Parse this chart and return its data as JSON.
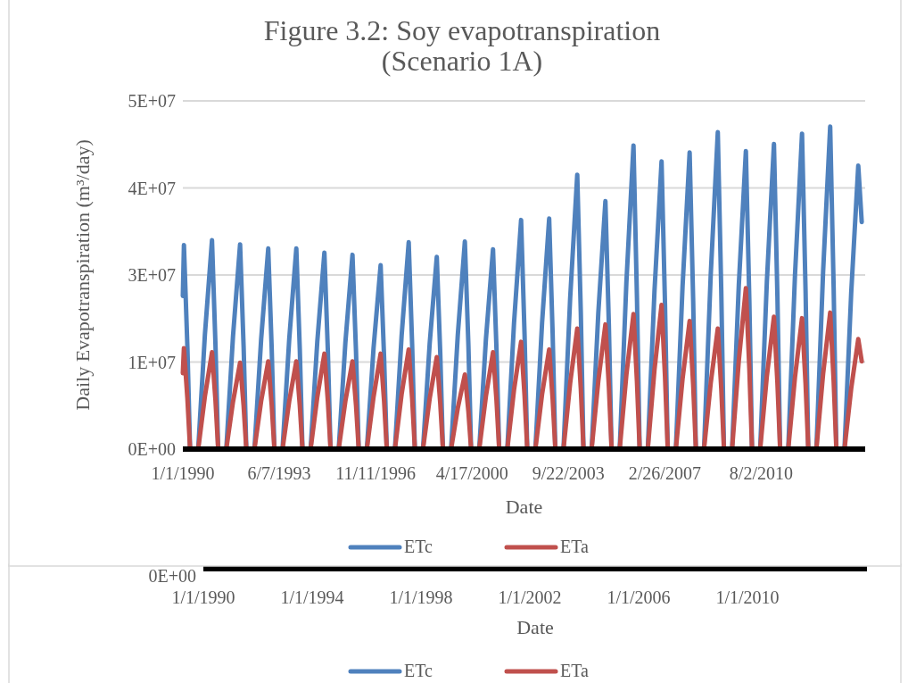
{
  "chart_data": [
    {
      "type": "line",
      "title": "Figure 3.2: Soy evapotranspiration\n(Scenario 1A)",
      "xlabel": "Date",
      "ylabel": "Daily Evapotranspiration (m³/day)",
      "legend": "bottom",
      "grid": "y",
      "line_style": "solid",
      "marker": "none",
      "xlim": [
        "1990-01-01",
        "2014-04-15"
      ],
      "ylim": [
        0,
        50000000.0
      ],
      "yticks": [
        {
          "value": 0,
          "label": "0E+00"
        },
        {
          "value": 12500000.0,
          "label": "1E+07"
        },
        {
          "value": 25000000.0,
          "label": "3E+07"
        },
        {
          "value": 37500000.0,
          "label": "4E+07"
        },
        {
          "value": 50000000.0,
          "label": "5E+07"
        }
      ],
      "xticks": [
        {
          "value": "1990-01-01",
          "label": "1/1/1990"
        },
        {
          "value": "1993-06-07",
          "label": "6/7/1993"
        },
        {
          "value": "1996-11-11",
          "label": "11/11/1996"
        },
        {
          "value": "2000-04-17",
          "label": "4/17/2000"
        },
        {
          "value": "2003-09-22",
          "label": "9/22/2003"
        },
        {
          "value": "2007-02-26",
          "label": "2/26/2007"
        },
        {
          "value": "2010-08-02",
          "label": "8/2/2010"
        }
      ],
      "x": [
        "1990-01-01",
        "1990-01-15",
        "1990-03-01",
        "1990-04-05",
        "1990-07-20",
        "1990-10-15",
        "1991-01-15",
        "1991-03-01",
        "1991-04-05",
        "1991-07-20",
        "1991-10-15",
        "1992-01-15",
        "1992-03-01",
        "1992-04-05",
        "1992-07-20",
        "1992-10-15",
        "1993-01-15",
        "1993-03-01",
        "1993-04-05",
        "1993-07-20",
        "1993-10-15",
        "1994-01-15",
        "1994-03-01",
        "1994-04-05",
        "1994-07-20",
        "1994-10-15",
        "1995-01-15",
        "1995-03-01",
        "1995-04-05",
        "1995-07-20",
        "1995-10-15",
        "1996-01-15",
        "1996-03-01",
        "1996-04-05",
        "1996-07-20",
        "1996-10-15",
        "1997-01-15",
        "1997-03-01",
        "1997-04-05",
        "1997-07-20",
        "1997-10-15",
        "1998-01-15",
        "1998-03-01",
        "1998-04-05",
        "1998-07-20",
        "1998-10-15",
        "1999-01-15",
        "1999-03-01",
        "1999-04-05",
        "1999-07-20",
        "1999-10-15",
        "2000-01-15",
        "2000-03-01",
        "2000-04-05",
        "2000-07-20",
        "2000-10-15",
        "2001-01-15",
        "2001-03-01",
        "2001-04-05",
        "2001-07-20",
        "2001-10-15",
        "2002-01-15",
        "2002-03-01",
        "2002-04-05",
        "2002-07-20",
        "2002-10-15",
        "2003-01-15",
        "2003-03-01",
        "2003-04-05",
        "2003-07-20",
        "2003-10-15",
        "2004-01-15",
        "2004-03-01",
        "2004-04-05",
        "2004-07-20",
        "2004-10-15",
        "2005-01-15",
        "2005-03-01",
        "2005-04-05",
        "2005-07-20",
        "2005-10-15",
        "2006-01-15",
        "2006-03-01",
        "2006-04-05",
        "2006-07-20",
        "2006-10-15",
        "2007-01-15",
        "2007-03-01",
        "2007-04-05",
        "2007-07-20",
        "2007-10-15",
        "2008-01-15",
        "2008-03-01",
        "2008-04-05",
        "2008-07-20",
        "2008-10-15",
        "2009-01-15",
        "2009-03-01",
        "2009-04-05",
        "2009-07-20",
        "2009-10-15",
        "2010-01-15",
        "2010-03-01",
        "2010-04-05",
        "2010-07-20",
        "2010-10-15",
        "2011-01-15",
        "2011-03-01",
        "2011-04-05",
        "2011-07-20",
        "2011-10-15",
        "2012-01-15",
        "2012-03-01",
        "2012-04-05",
        "2012-07-20",
        "2012-10-15",
        "2013-01-15",
        "2013-03-01",
        "2013-04-05",
        "2013-07-20",
        "2013-10-15",
        "2014-01-15",
        "2014-03-01"
      ],
      "series": [
        {
          "name": "ETc",
          "color": "#4f81bd",
          "values": [
            22000000.0,
            29300000.0,
            14700000.0,
            0,
            0,
            16500000.0,
            30000000.0,
            15000000.0,
            0,
            0,
            16200000.0,
            29400000.0,
            14700000.0,
            0,
            0,
            15800000.0,
            28800000.0,
            14400000.0,
            0,
            0,
            15800000.0,
            28800000.0,
            14400000.0,
            0,
            0,
            15500000.0,
            28200000.0,
            14100000.0,
            0,
            0,
            15300000.0,
            27900000.0,
            14000000.0,
            0,
            0,
            14500000.0,
            26400000.0,
            13200000.0,
            0,
            0,
            16300000.0,
            29700000.0,
            14900000.0,
            0,
            0,
            15200000.0,
            27600000.0,
            13800000.0,
            0,
            0,
            16400000.0,
            29800000.0,
            14900000.0,
            0,
            0,
            15800000.0,
            28700000.0,
            14400000.0,
            0,
            0,
            18100000.0,
            32900000.0,
            16500000.0,
            0,
            0,
            18200000.0,
            33100000.0,
            16600000.0,
            0,
            0,
            21700000.0,
            39400000.0,
            19700000.0,
            0,
            0,
            19600000.0,
            35600000.0,
            17800000.0,
            0,
            0,
            24000000.0,
            43600000.0,
            21800000.0,
            0,
            0,
            22700000.0,
            41300000.0,
            20700000.0,
            0,
            0,
            23400000.0,
            42600000.0,
            21300000.0,
            0,
            0,
            25000000.0,
            45500000.0,
            22800000.0,
            0,
            0,
            23500000.0,
            42800000.0,
            21400000.0,
            0,
            0,
            24100000.0,
            43800000.0,
            21900000.0,
            0,
            0,
            24900000.0,
            45300000.0,
            22700000.0,
            0,
            0,
            25500000.0,
            46300000.0,
            23200000.0,
            0,
            0,
            22400000.0,
            40700000.0,
            32600000.0
          ]
        },
        {
          "name": "ETa",
          "color": "#c0504d",
          "values": [
            10900000.0,
            14500000.0,
            7300000.0,
            0,
            0,
            7600000.0,
            13900000.0,
            7000000.0,
            0,
            0,
            6800000.0,
            12400000.0,
            6200000.0,
            0,
            0,
            6900000.0,
            12600000.0,
            6300000.0,
            0,
            0,
            6900000.0,
            12600000.0,
            6300000.0,
            0,
            0,
            7500000.0,
            13700000.0,
            6900000.0,
            0,
            0,
            6900000.0,
            12600000.0,
            6300000.0,
            0,
            0,
            7500000.0,
            13700000.0,
            6900000.0,
            0,
            0,
            7900000.0,
            14300000.0,
            7200000.0,
            0,
            0,
            7300000.0,
            13200000.0,
            6600000.0,
            0,
            0,
            5900000.0,
            10700000.0,
            5400000.0,
            0,
            0,
            7600000.0,
            13900000.0,
            7000000.0,
            0,
            0,
            8500000.0,
            15400000.0,
            7700000.0,
            0,
            0,
            7900000.0,
            14300000.0,
            7200000.0,
            0,
            0,
            9500000.0,
            17300000.0,
            8700000.0,
            0,
            0,
            9800000.0,
            17900000.0,
            9000000.0,
            0,
            0,
            10700000.0,
            19400000.0,
            9700000.0,
            0,
            0,
            11400000.0,
            20700000.0,
            10400000.0,
            0,
            0,
            10100000.0,
            18400000.0,
            9200000.0,
            0,
            0,
            9500000.0,
            17300000.0,
            8700000.0,
            0,
            0,
            12700000.0,
            23100000.0,
            11600000.0,
            0,
            0,
            10500000.0,
            19000000.0,
            9500000.0,
            0,
            0,
            10300000.0,
            18800000.0,
            9400000.0,
            0,
            0,
            10800000.0,
            19600000.0,
            9800000.0,
            0,
            0,
            8700000.0,
            15800000.0,
            12600000.0
          ]
        }
      ]
    },
    {
      "type": "other",
      "xlabel": "Date",
      "legend": "bottom",
      "annotations": [
        "0E+00",
        "1/1/1990",
        "1/1/1994",
        "1/1/1998",
        "1/1/2002",
        "1/1/2006",
        "1/1/2010"
      ],
      "series": [
        {
          "name": "ETc",
          "color": "#4f81bd"
        },
        {
          "name": "ETa",
          "color": "#c0504d"
        }
      ]
    }
  ]
}
